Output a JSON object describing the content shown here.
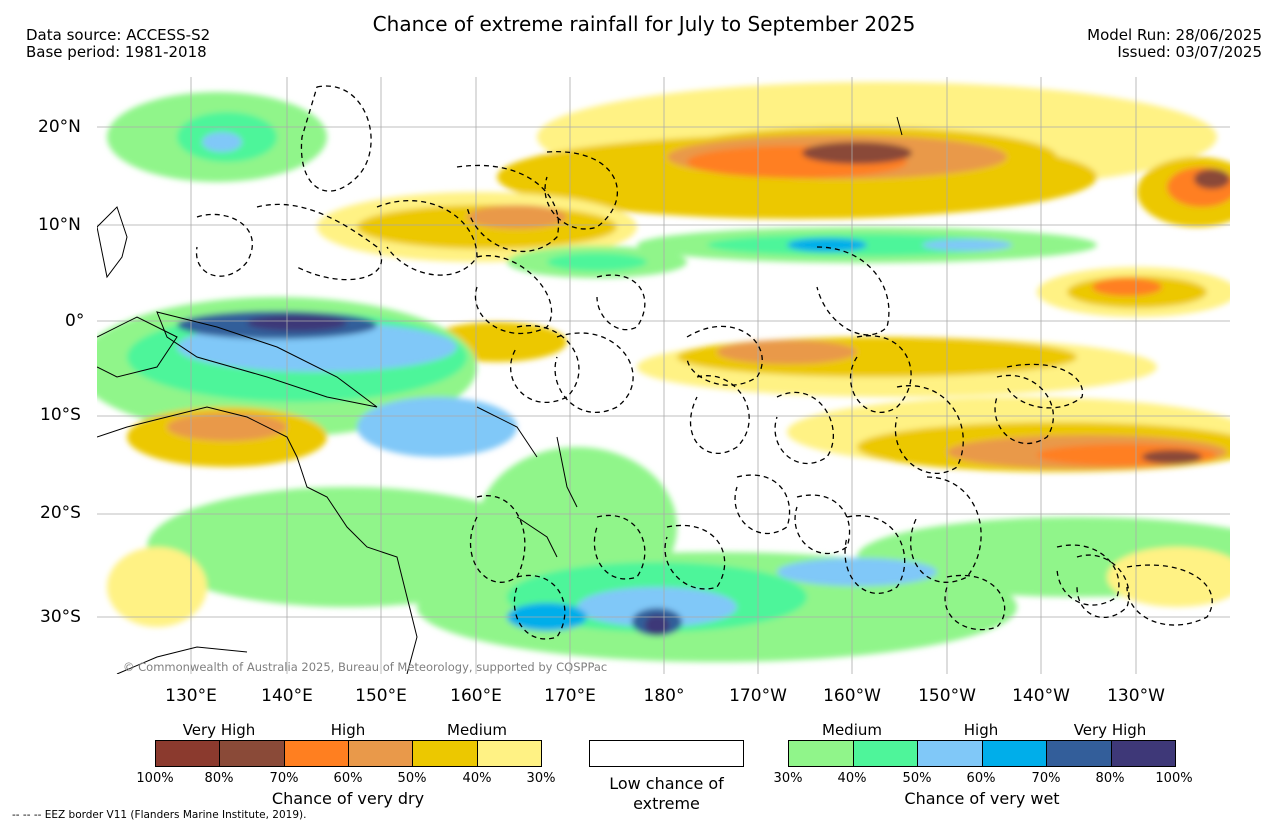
{
  "header": {
    "title": "Chance of extreme rainfall for July to September 2025",
    "data_source": "Data source: ACCESS-S2",
    "base_period": "Base period: 1981-2018",
    "model_run": "Model Run: 28/06/2025",
    "issued": "Issued: 03/07/2025"
  },
  "map": {
    "lat_labels": [
      "20°N",
      "10°N",
      "0°",
      "10°S",
      "20°S",
      "30°S"
    ],
    "lon_labels": [
      "130°E",
      "140°E",
      "150°E",
      "160°E",
      "170°E",
      "180°",
      "170°W",
      "160°W",
      "150°W",
      "140°W",
      "130°W"
    ],
    "credit": "© Commonwealth of Australia 2025, Bureau of Meteorology, supported by COSPPac"
  },
  "legend": {
    "dry": {
      "categories": [
        "Very High",
        "High",
        "Medium"
      ],
      "ticks": [
        "100%",
        "80%",
        "70%",
        "60%",
        "50%",
        "40%",
        "30%"
      ],
      "colors": [
        "#8b3a2e",
        "#8a4a38",
        "#ff7f20",
        "#e9994a",
        "#ecc800",
        "#fff284"
      ],
      "title": "Chance of very dry"
    },
    "low": {
      "label": "Low chance of extreme"
    },
    "wet": {
      "categories": [
        "Medium",
        "High",
        "Very High"
      ],
      "ticks": [
        "30%",
        "40%",
        "50%",
        "60%",
        "70%",
        "80%",
        "100%"
      ],
      "colors": [
        "#90f58a",
        "#4ef59a",
        "#80c8f8",
        "#00aeea",
        "#335e9a",
        "#3e3878"
      ],
      "title": "Chance of very wet"
    }
  },
  "footer": {
    "eez": "--  --  -- EEZ border V11 (Flanders Marine Institute, 2019)."
  }
}
